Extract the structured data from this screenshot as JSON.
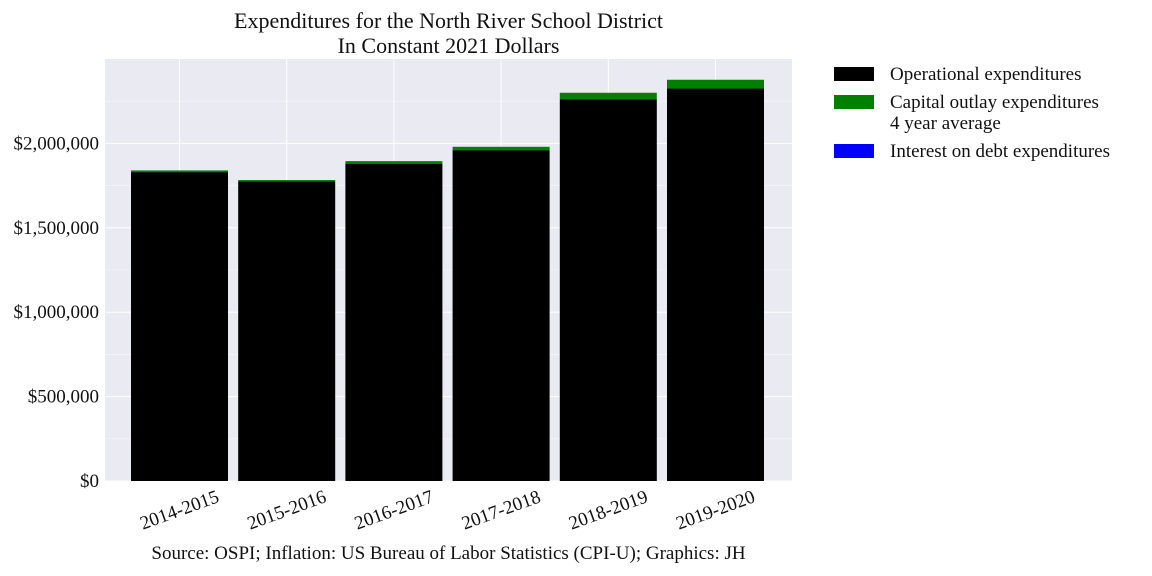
{
  "chart_data": {
    "type": "bar",
    "stacked": true,
    "title": "Expenditures for the North River School District",
    "subtitle": "In Constant 2021 Dollars",
    "xlabel": "",
    "ylabel": "",
    "ylim": [
      0,
      2500000
    ],
    "y_ticks": [
      0,
      500000,
      1000000,
      1500000,
      2000000
    ],
    "y_tick_labels": [
      "$0",
      "$500,000",
      "$1,000,000",
      "$1,500,000",
      "$2,000,000"
    ],
    "categories": [
      "2014-2015",
      "2015-2016",
      "2016-2017",
      "2017-2018",
      "2018-2019",
      "2019-2020"
    ],
    "series": [
      {
        "name": "Operational expenditures",
        "color": "#000000",
        "values": [
          1830000,
          1775000,
          1880000,
          1960000,
          2260000,
          2325000
        ]
      },
      {
        "name": "Capital outlay expenditures\n4 year average",
        "color": "#008000",
        "values": [
          10000,
          8000,
          15000,
          20000,
          40000,
          52000
        ]
      },
      {
        "name": "Interest on debt expenditures",
        "color": "#0000ff",
        "values": [
          0,
          0,
          0,
          0,
          0,
          0
        ]
      }
    ],
    "grid": true,
    "legend_position": "outside-right",
    "source": "Source: OSPI; Inflation: US Bureau of Labor Statistics (CPI-U); Graphics: JH"
  }
}
